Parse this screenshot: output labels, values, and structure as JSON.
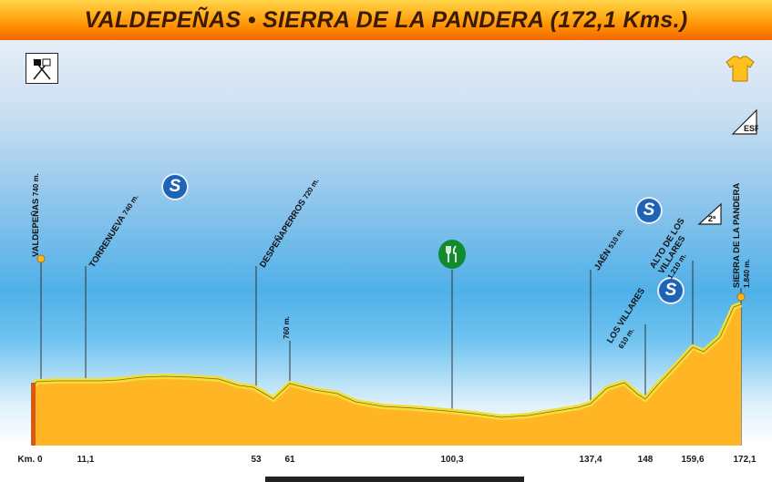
{
  "header": {
    "title": "VALDEPEÑAS • SIERRA DE LA PANDERA (172,1 Kms.)"
  },
  "colors": {
    "header_orange": "#ff8a00",
    "profile_fill": "#ffb524",
    "profile_edge": "#f2de3a",
    "sprint_blue": "#1e63b6",
    "feed_green": "#138a2e"
  },
  "axis": {
    "start_label": "Km. 0",
    "ticks": [
      "11,1",
      "53",
      "61",
      "100,3",
      "137,4",
      "148",
      "159,6",
      "172,1"
    ]
  },
  "points": [
    {
      "name": "VALDEPEÑAS",
      "alt": "740 m."
    },
    {
      "name": "TORRENUEVA",
      "alt": "740 m."
    },
    {
      "name": "DESPEÑAPERROS",
      "alt": "720 m."
    },
    {
      "name": "",
      "alt": "760 m."
    },
    {
      "name": "JAÉN",
      "alt": "510 m."
    },
    {
      "name": "LOS VILLARES",
      "alt": "610 m."
    },
    {
      "name": "ALTO DE LOS VILLARES",
      "alt": "1.210 m."
    },
    {
      "name": "SIERRA DE LA PANDERA",
      "alt": "1.840 m."
    }
  ],
  "badges": {
    "sprint": "S",
    "category": "2ª",
    "finish": "ESP"
  },
  "icons": [
    "start-flag-icon",
    "sprint-icon",
    "feed-zone-icon",
    "jersey-icon",
    "finish-climb-icon",
    "category-icon"
  ]
}
